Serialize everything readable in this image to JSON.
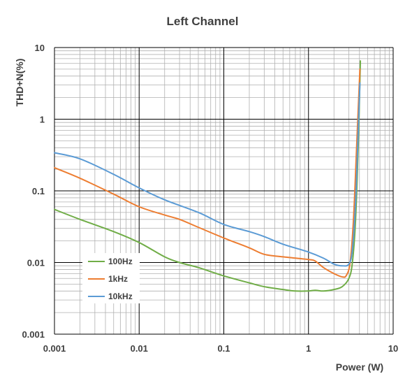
{
  "chart_data": {
    "type": "line",
    "title": "Left Channel",
    "xlabel": "Power (W)",
    "ylabel": "THD+N(%)",
    "xscale": "log",
    "yscale": "log",
    "xlim": [
      0.001,
      10
    ],
    "ylim": [
      0.001,
      10
    ],
    "x_ticks": [
      "0.001",
      "0.01",
      "0.1",
      "1",
      "10"
    ],
    "y_ticks": [
      "0.001",
      "0.01",
      "0.1",
      "1",
      "10"
    ],
    "grid": true,
    "legend_position": "lower-left",
    "series": [
      {
        "name": "100Hz",
        "color": "#70ad47",
        "points": [
          [
            0.001,
            0.055
          ],
          [
            0.002,
            0.04
          ],
          [
            0.005,
            0.027
          ],
          [
            0.01,
            0.019
          ],
          [
            0.02,
            0.012
          ],
          [
            0.03,
            0.01
          ],
          [
            0.05,
            0.0085
          ],
          [
            0.1,
            0.0065
          ],
          [
            0.2,
            0.0052
          ],
          [
            0.3,
            0.0046
          ],
          [
            0.5,
            0.0042
          ],
          [
            0.7,
            0.004
          ],
          [
            1.0,
            0.004
          ],
          [
            1.2,
            0.0041
          ],
          [
            1.5,
            0.004
          ],
          [
            2.0,
            0.0042
          ],
          [
            2.5,
            0.0046
          ],
          [
            3.0,
            0.006
          ],
          [
            3.3,
            0.01
          ],
          [
            3.6,
            0.04
          ],
          [
            3.9,
            0.6
          ],
          [
            4.1,
            6.5
          ]
        ]
      },
      {
        "name": "1kHz",
        "color": "#ed7d31",
        "points": [
          [
            0.001,
            0.21
          ],
          [
            0.002,
            0.15
          ],
          [
            0.005,
            0.09
          ],
          [
            0.01,
            0.06
          ],
          [
            0.02,
            0.046
          ],
          [
            0.03,
            0.04
          ],
          [
            0.05,
            0.031
          ],
          [
            0.1,
            0.022
          ],
          [
            0.2,
            0.016
          ],
          [
            0.3,
            0.013
          ],
          [
            0.5,
            0.012
          ],
          [
            1.0,
            0.011
          ],
          [
            1.2,
            0.0105
          ],
          [
            1.5,
            0.0085
          ],
          [
            2.0,
            0.007
          ],
          [
            2.5,
            0.0063
          ],
          [
            2.8,
            0.0066
          ],
          [
            3.1,
            0.01
          ],
          [
            3.4,
            0.04
          ],
          [
            3.7,
            0.4
          ],
          [
            3.95,
            2.5
          ],
          [
            4.05,
            5.0
          ]
        ]
      },
      {
        "name": "10kHz",
        "color": "#5b9bd5",
        "points": [
          [
            0.001,
            0.34
          ],
          [
            0.002,
            0.28
          ],
          [
            0.005,
            0.17
          ],
          [
            0.01,
            0.11
          ],
          [
            0.02,
            0.075
          ],
          [
            0.05,
            0.05
          ],
          [
            0.1,
            0.034
          ],
          [
            0.2,
            0.027
          ],
          [
            0.3,
            0.023
          ],
          [
            0.5,
            0.018
          ],
          [
            1.0,
            0.014
          ],
          [
            1.5,
            0.0115
          ],
          [
            2.0,
            0.0095
          ],
          [
            2.5,
            0.009
          ],
          [
            3.0,
            0.0095
          ],
          [
            3.3,
            0.015
          ],
          [
            3.6,
            0.07
          ],
          [
            3.85,
            0.6
          ],
          [
            4.05,
            3.2
          ]
        ]
      }
    ]
  }
}
